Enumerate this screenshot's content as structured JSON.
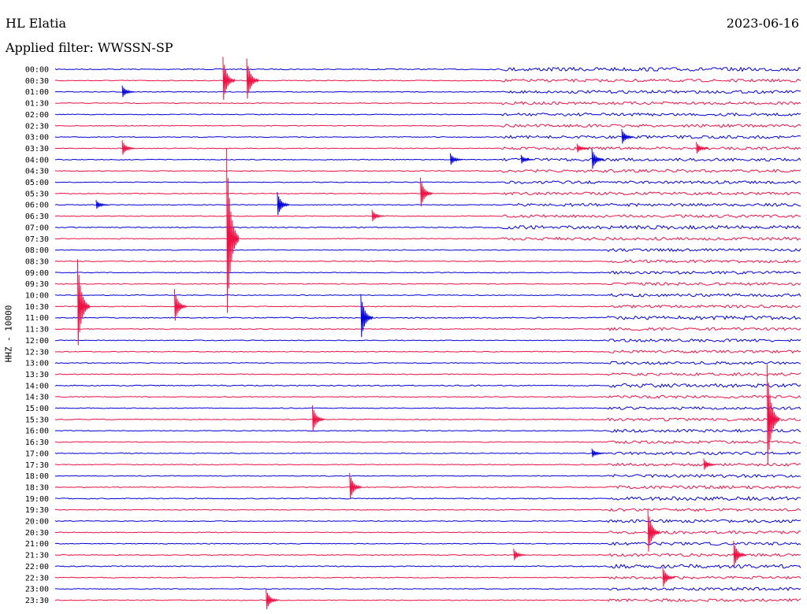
{
  "header": {
    "station": "HL Elatia",
    "date": "2023-06-16",
    "filter": "Applied filter: WWSSN-SP"
  },
  "axis": {
    "channel_label": "HHZ - 10000"
  },
  "colors": {
    "trace_even": "#0000dd",
    "trace_odd": "#ee1144",
    "background": "#ffffff",
    "text": "#000000"
  },
  "rows": [
    "00:00",
    "00:30",
    "01:00",
    "01:30",
    "02:00",
    "02:30",
    "03:00",
    "03:30",
    "04:00",
    "04:30",
    "05:00",
    "05:30",
    "06:00",
    "06:30",
    "07:00",
    "07:30",
    "08:00",
    "08:30",
    "09:00",
    "09:30",
    "10:00",
    "10:30",
    "11:00",
    "11:30",
    "12:00",
    "12:30",
    "13:00",
    "13:30",
    "14:00",
    "14:30",
    "15:00",
    "15:30",
    "16:00",
    "16:30",
    "17:00",
    "17:30",
    "18:00",
    "18:30",
    "19:00",
    "19:30",
    "20:00",
    "20:30",
    "21:00",
    "21:30",
    "22:00",
    "22:30",
    "23:00",
    "23:30"
  ],
  "events": [
    {
      "row": 1,
      "pos": 0.225,
      "amp": 30
    },
    {
      "row": 1,
      "pos": 0.257,
      "amp": 28
    },
    {
      "row": 2,
      "pos": 0.09,
      "amp": 8
    },
    {
      "row": 6,
      "pos": 0.76,
      "amp": 10
    },
    {
      "row": 7,
      "pos": 0.09,
      "amp": 10
    },
    {
      "row": 7,
      "pos": 0.7,
      "amp": 6
    },
    {
      "row": 7,
      "pos": 0.86,
      "amp": 8
    },
    {
      "row": 8,
      "pos": 0.53,
      "amp": 8
    },
    {
      "row": 8,
      "pos": 0.625,
      "amp": 6
    },
    {
      "row": 8,
      "pos": 0.72,
      "amp": 14
    },
    {
      "row": 11,
      "pos": 0.49,
      "amp": 20
    },
    {
      "row": 12,
      "pos": 0.298,
      "amp": 16
    },
    {
      "row": 12,
      "pos": 0.055,
      "amp": 6
    },
    {
      "row": 13,
      "pos": 0.425,
      "amp": 8
    },
    {
      "row": 15,
      "pos": 0.23,
      "amp": 115
    },
    {
      "row": 21,
      "pos": 0.03,
      "amp": 60
    },
    {
      "row": 21,
      "pos": 0.16,
      "amp": 22
    },
    {
      "row": 22,
      "pos": 0.41,
      "amp": 30
    },
    {
      "row": 31,
      "pos": 0.345,
      "amp": 18
    },
    {
      "row": 31,
      "pos": 0.955,
      "amp": 70
    },
    {
      "row": 34,
      "pos": 0.72,
      "amp": 6
    },
    {
      "row": 35,
      "pos": 0.87,
      "amp": 8
    },
    {
      "row": 37,
      "pos": 0.395,
      "amp": 18
    },
    {
      "row": 41,
      "pos": 0.795,
      "amp": 30
    },
    {
      "row": 43,
      "pos": 0.615,
      "amp": 8
    },
    {
      "row": 43,
      "pos": 0.91,
      "amp": 18
    },
    {
      "row": 45,
      "pos": 0.815,
      "amp": 14
    },
    {
      "row": 47,
      "pos": 0.283,
      "amp": 14
    }
  ]
}
